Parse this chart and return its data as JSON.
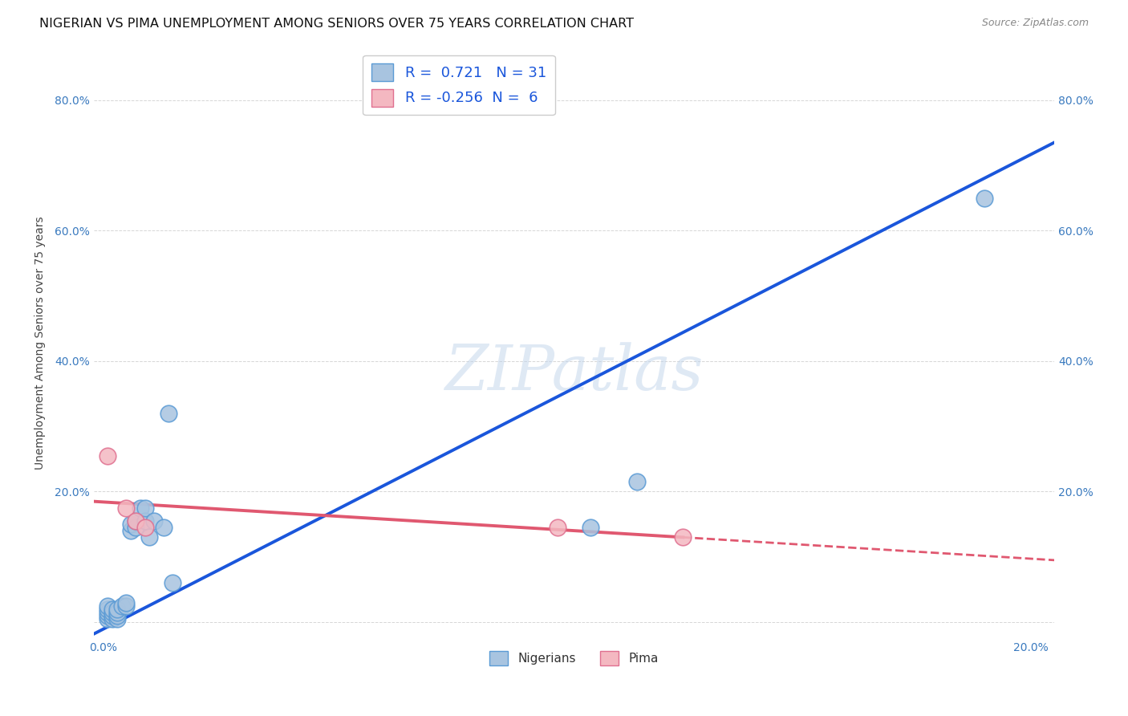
{
  "title": "NIGERIAN VS PIMA UNEMPLOYMENT AMONG SENIORS OVER 75 YEARS CORRELATION CHART",
  "source": "Source: ZipAtlas.com",
  "ylabel": "Unemployment Among Seniors over 75 years",
  "xlim": [
    -0.002,
    0.205
  ],
  "ylim": [
    -0.025,
    0.88
  ],
  "nigerian_x": [
    0.001,
    0.001,
    0.001,
    0.001,
    0.001,
    0.002,
    0.002,
    0.002,
    0.002,
    0.003,
    0.003,
    0.003,
    0.003,
    0.004,
    0.005,
    0.005,
    0.006,
    0.006,
    0.007,
    0.007,
    0.008,
    0.009,
    0.009,
    0.01,
    0.011,
    0.013,
    0.014,
    0.015,
    0.105,
    0.115,
    0.19
  ],
  "nigerian_y": [
    0.005,
    0.01,
    0.015,
    0.02,
    0.025,
    0.005,
    0.01,
    0.015,
    0.02,
    0.005,
    0.01,
    0.015,
    0.02,
    0.025,
    0.025,
    0.03,
    0.14,
    0.15,
    0.145,
    0.155,
    0.175,
    0.155,
    0.175,
    0.13,
    0.155,
    0.145,
    0.32,
    0.06,
    0.145,
    0.215,
    0.65
  ],
  "pima_x": [
    0.001,
    0.005,
    0.007,
    0.009,
    0.098,
    0.125
  ],
  "pima_y": [
    0.255,
    0.175,
    0.155,
    0.145,
    0.145,
    0.13
  ],
  "nigerian_color": "#a8c4e0",
  "nigerian_edge_color": "#5b9bd5",
  "pima_color": "#f4b8c1",
  "pima_edge_color": "#e07090",
  "trend_nigerian_color": "#1a56db",
  "trend_pima_solid_color": "#e05870",
  "trend_pima_dashed_color": "#e05870",
  "trend_nigerian_x0": -0.002,
  "trend_nigerian_y0": -0.018,
  "trend_nigerian_x1": 0.205,
  "trend_nigerian_y1": 0.735,
  "trend_pima_x0": -0.002,
  "trend_pima_y0": 0.185,
  "trend_pima_x1": 0.125,
  "trend_pima_y1": 0.13,
  "trend_pima_dash_x0": 0.125,
  "trend_pima_dash_y0": 0.13,
  "trend_pima_dash_x1": 0.205,
  "trend_pima_dash_y1": 0.095,
  "R_nigerian": 0.721,
  "N_nigerian": 31,
  "R_pima": -0.256,
  "N_pima": 6,
  "watermark": "ZIPatlas",
  "legend_label_nigerian": "Nigerians",
  "legend_label_pima": "Pima",
  "background_color": "#ffffff",
  "grid_color": "#cccccc"
}
